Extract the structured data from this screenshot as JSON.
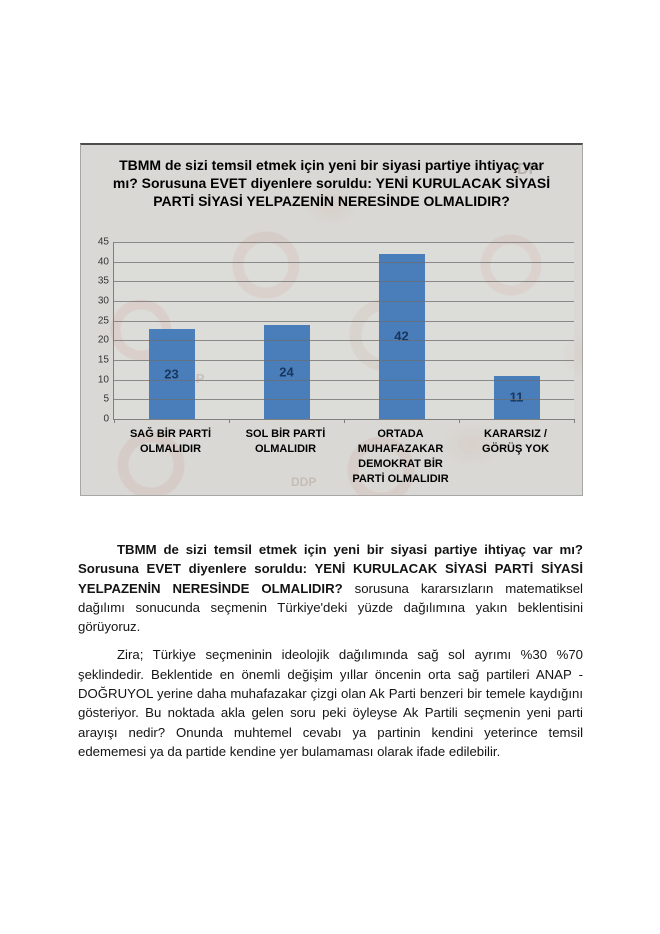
{
  "chart": {
    "watermark_texts": [
      "DP",
      "DDP",
      "DDP"
    ]
  },
  "chart_data": {
    "type": "bar",
    "title": "TBMM de sizi temsil etmek için yeni bir siyasi partiye ihtiyaç var mı? Sorusuna EVET diyenlere soruldu: YENİ KURULACAK SİYASİ PARTİ SİYASİ YELPAZENİN NERESİNDE OLMALIDIR?",
    "categories": [
      "SAĞ BİR PARTİ OLMALIDIR",
      "SOL BİR PARTİ OLMALIDIR",
      "ORTADA MUHAFAZAKAR DEMOKRAT BİR PARTİ OLMALIDIR",
      "KARARSIZ / GÖRÜŞ YOK"
    ],
    "values": [
      23,
      24,
      42,
      11
    ],
    "xlabel": "",
    "ylabel": "",
    "ylim": [
      0,
      45
    ],
    "ytick_step": 5,
    "grid": true,
    "legend": false,
    "bar_color": "#4a7ebb",
    "value_label_color": "#17375e",
    "chart_background": "#d9d8d5"
  },
  "document": {
    "p1_bold": "TBMM de sizi temsil etmek için yeni bir siyasi partiye ihtiyaç var mı? Sorusuna EVET diyenlere soruldu: YENİ KURULACAK SİYASİ PARTİ SİYASİ YELPAZENİN NERESİNDE OLMALIDIR?",
    "p1_regular": " sorusuna kararsızların matematiksel dağılımı sonucunda seçmenin Türkiye'deki yüzde dağılımına yakın beklentisini görüyoruz.",
    "p2": "Zira; Türkiye seçmeninin ideolojik dağılımında sağ sol ayrımı %30 %70 şeklindedir. Beklentide en önemli değişim  yıllar öncenin orta sağ partileri ANAP - DOĞRUYOL yerine daha muhafazakar çizgi olan Ak Parti benzeri bir temele kaydığını gösteriyor. Bu noktada akla gelen soru peki öyleyse Ak Partili seçmenin yeni parti arayışı nedir? Onunda muhtemel cevabı ya partinin kendini yeterince temsil edememesi ya da partide kendine yer bulamaması olarak ifade edilebilir."
  }
}
